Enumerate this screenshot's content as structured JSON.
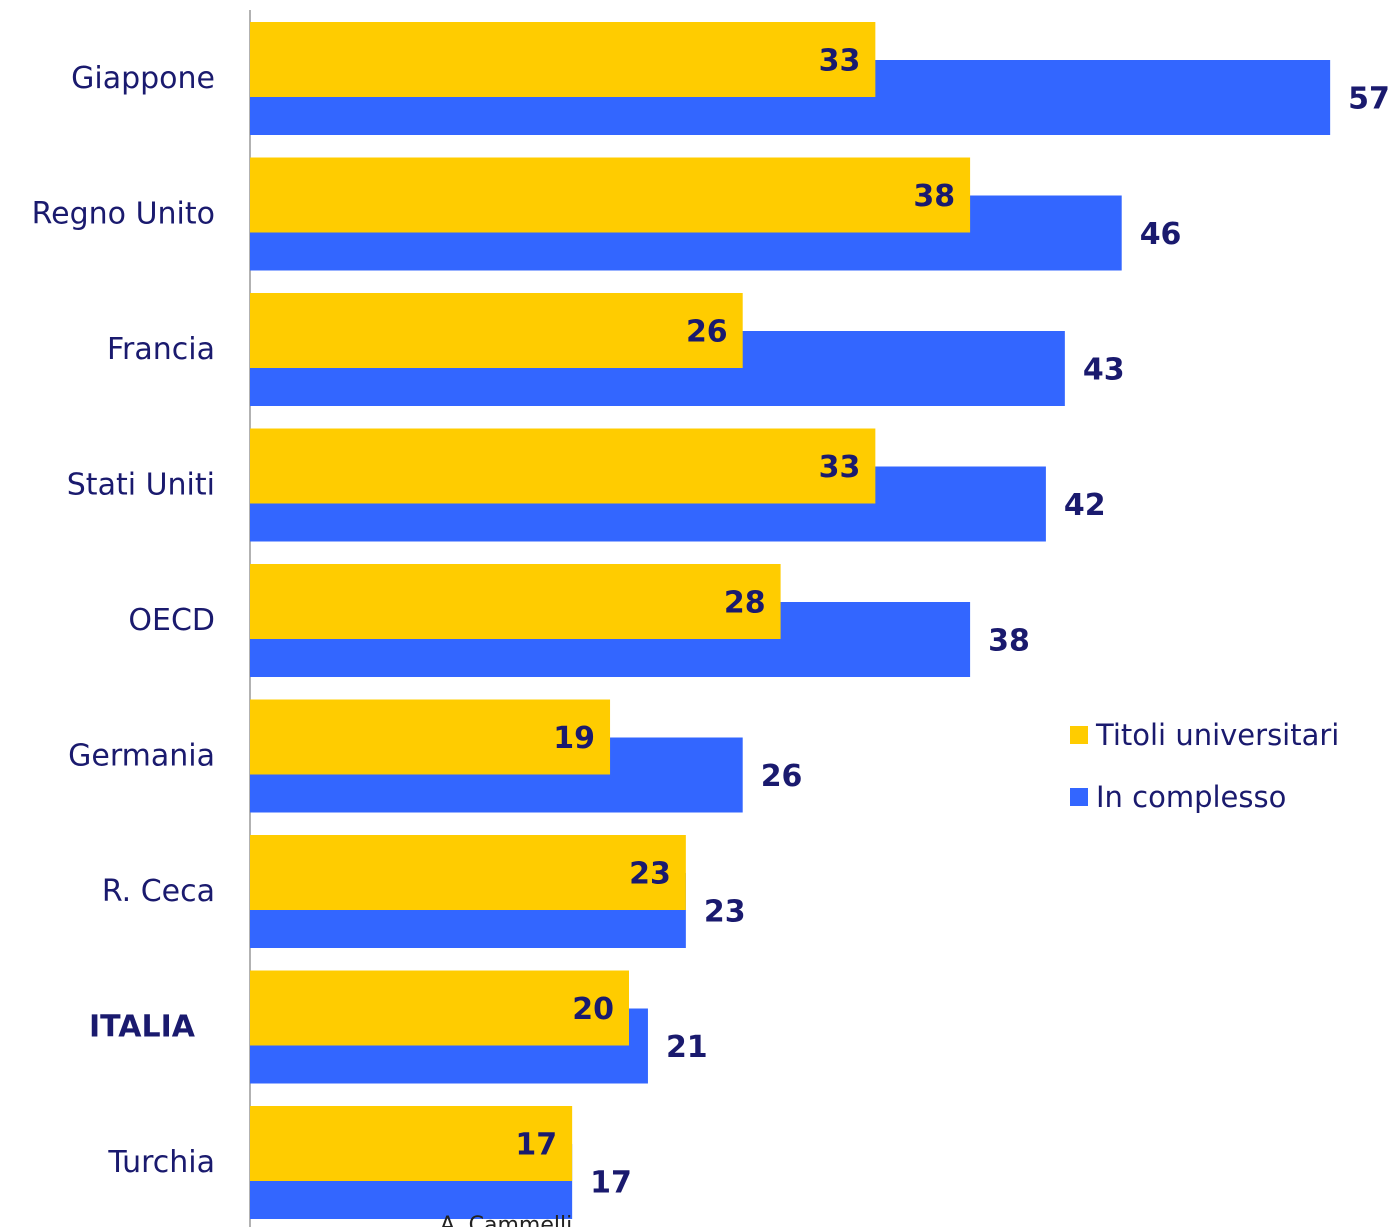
{
  "chart_data": {
    "type": "bar",
    "orientation": "horizontal",
    "overlap": true,
    "categories": [
      "Giappone",
      "Regno Unito",
      "Francia",
      "Stati Uniti",
      "OECD",
      "Germania",
      "R. Ceca",
      "ITALIA",
      "Turchia"
    ],
    "category_colors": [
      "#1a1a6e",
      "#1a1a6e",
      "#1a1a6e",
      "#1a1a6e",
      "#1a1a6e",
      "#1a1a6e",
      "#1a1a6e",
      "#ee1111",
      "#1a1a6e"
    ],
    "series": [
      {
        "name": "Titoli universitari",
        "color": "#ffcc00",
        "values": [
          33,
          38,
          26,
          33,
          28,
          19,
          23,
          20,
          17
        ]
      },
      {
        "name": "In complesso",
        "color": "#3366ff",
        "values": [
          57,
          46,
          43,
          42,
          38,
          26,
          23,
          21,
          17
        ]
      }
    ],
    "xlim": [
      0,
      60
    ],
    "legend": "right",
    "source": "A. Cammelli"
  }
}
